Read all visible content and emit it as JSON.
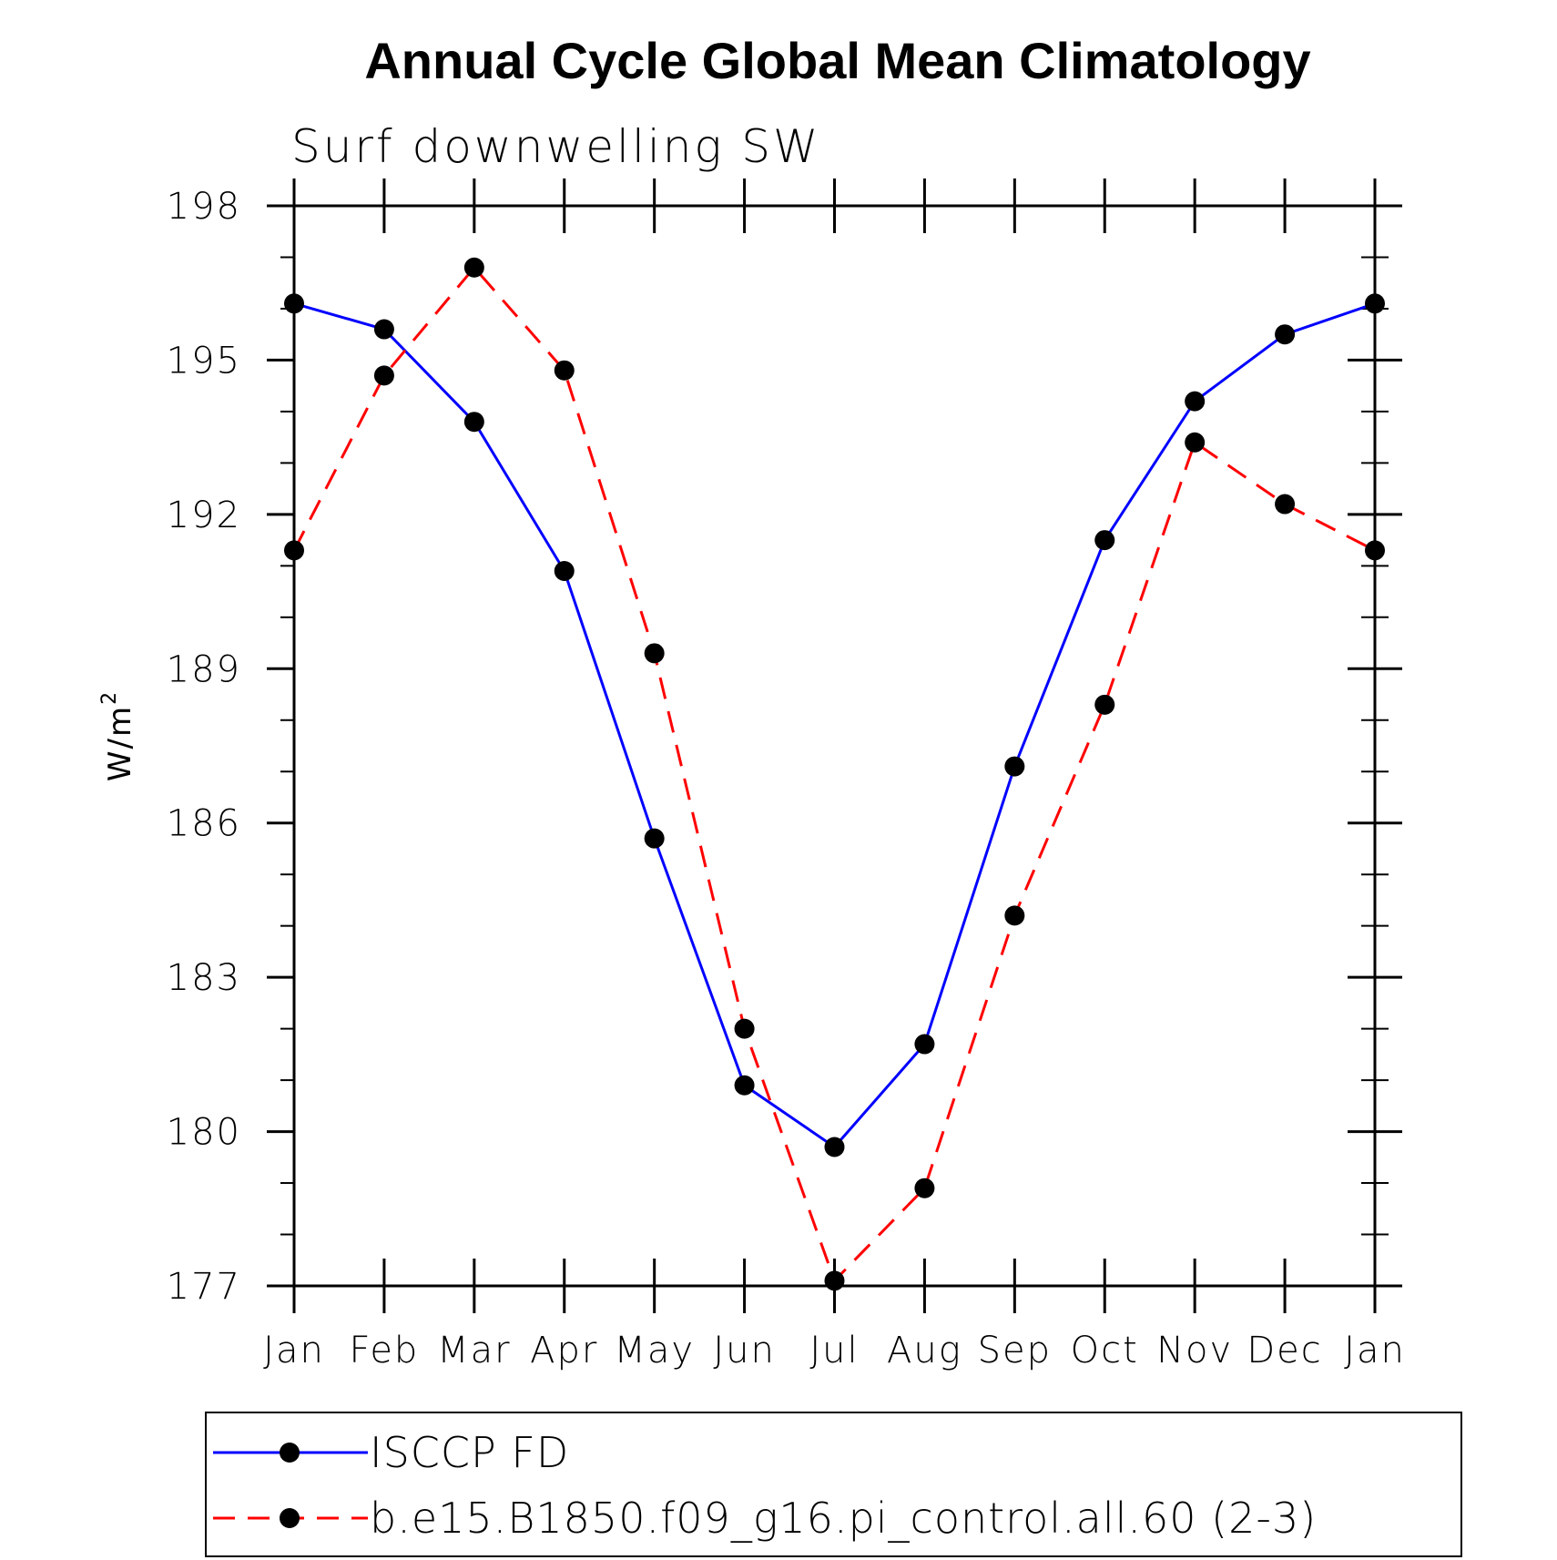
{
  "chart_data": {
    "type": "line",
    "title": "Annual Cycle Global Mean Climatology",
    "subtitle": "Surf downwelling SW",
    "xlabel": "",
    "ylabel": "W/m",
    "ylabel_superscript": "2",
    "categories": [
      "Jan",
      "Feb",
      "Mar",
      "Apr",
      "May",
      "Jun",
      "Jul",
      "Aug",
      "Sep",
      "Oct",
      "Nov",
      "Dec",
      "Jan"
    ],
    "ylim": [
      177,
      198
    ],
    "yticks": [
      177,
      180,
      183,
      186,
      189,
      192,
      195,
      198
    ],
    "grid": false,
    "legend_position": "bottom",
    "series": [
      {
        "name": "ISCCP FD",
        "color": "#0000ff",
        "dash": "solid",
        "marker": "filled-circle",
        "values": [
          196.1,
          195.6,
          193.8,
          190.9,
          185.7,
          180.9,
          179.7,
          181.7,
          187.1,
          191.5,
          194.2,
          195.5,
          196.1
        ]
      },
      {
        "name": "b.e15.B1850.f09_g16.pi_control.all.60 (2-3)",
        "color": "#ff0000",
        "dash": "dashed",
        "marker": "filled-circle",
        "values": [
          191.3,
          194.7,
          196.8,
          194.8,
          189.3,
          182.0,
          177.1,
          178.9,
          184.2,
          188.3,
          193.4,
          192.2,
          191.3
        ]
      }
    ]
  }
}
